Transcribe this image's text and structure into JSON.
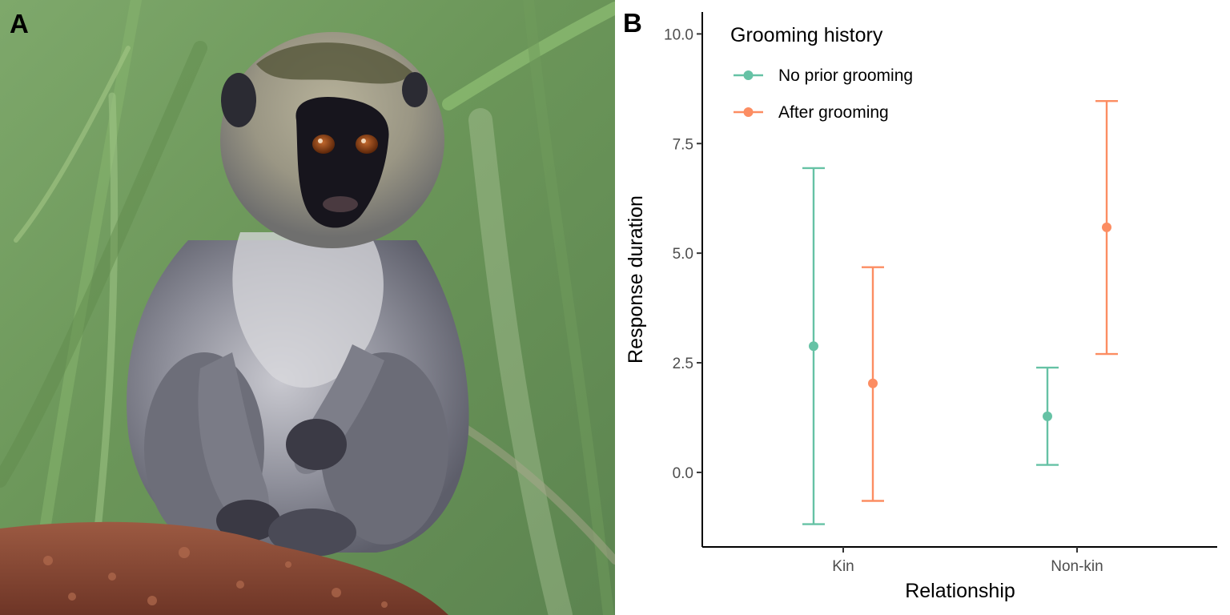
{
  "panels": {
    "left_label": "A",
    "right_label": "B"
  },
  "photo": {
    "icon": "vervet-monkey-photo",
    "colors": {
      "background": "#6e9a5c",
      "fur": "#8d8e98",
      "face": "#17151d",
      "eye": "#8a3f16",
      "ground": "#8f4a33"
    }
  },
  "chart_data": {
    "type": "scatter",
    "xlabel": "Relationship",
    "ylabel": "Response duration",
    "categories": [
      "Kin",
      "Non-kin"
    ],
    "ylim": [
      -1.7,
      10.5
    ],
    "yticks": [
      0.0,
      2.5,
      5.0,
      7.5,
      10.0
    ],
    "ytick_labels": [
      "0.0",
      "2.5",
      "5.0",
      "7.5",
      "10.0"
    ],
    "grid": false,
    "legend": {
      "title": "Grooming history",
      "position": "top-left"
    },
    "series": [
      {
        "name": "No prior grooming",
        "color": "#66c2a5",
        "values": [
          2.88,
          1.28
        ],
        "lower": [
          -1.18,
          0.17
        ],
        "upper": [
          6.94,
          2.39
        ]
      },
      {
        "name": "After grooming",
        "color": "#fc8d62",
        "values": [
          2.03,
          5.59
        ],
        "lower": [
          -0.65,
          2.7
        ],
        "upper": [
          4.68,
          8.47
        ]
      }
    ]
  }
}
